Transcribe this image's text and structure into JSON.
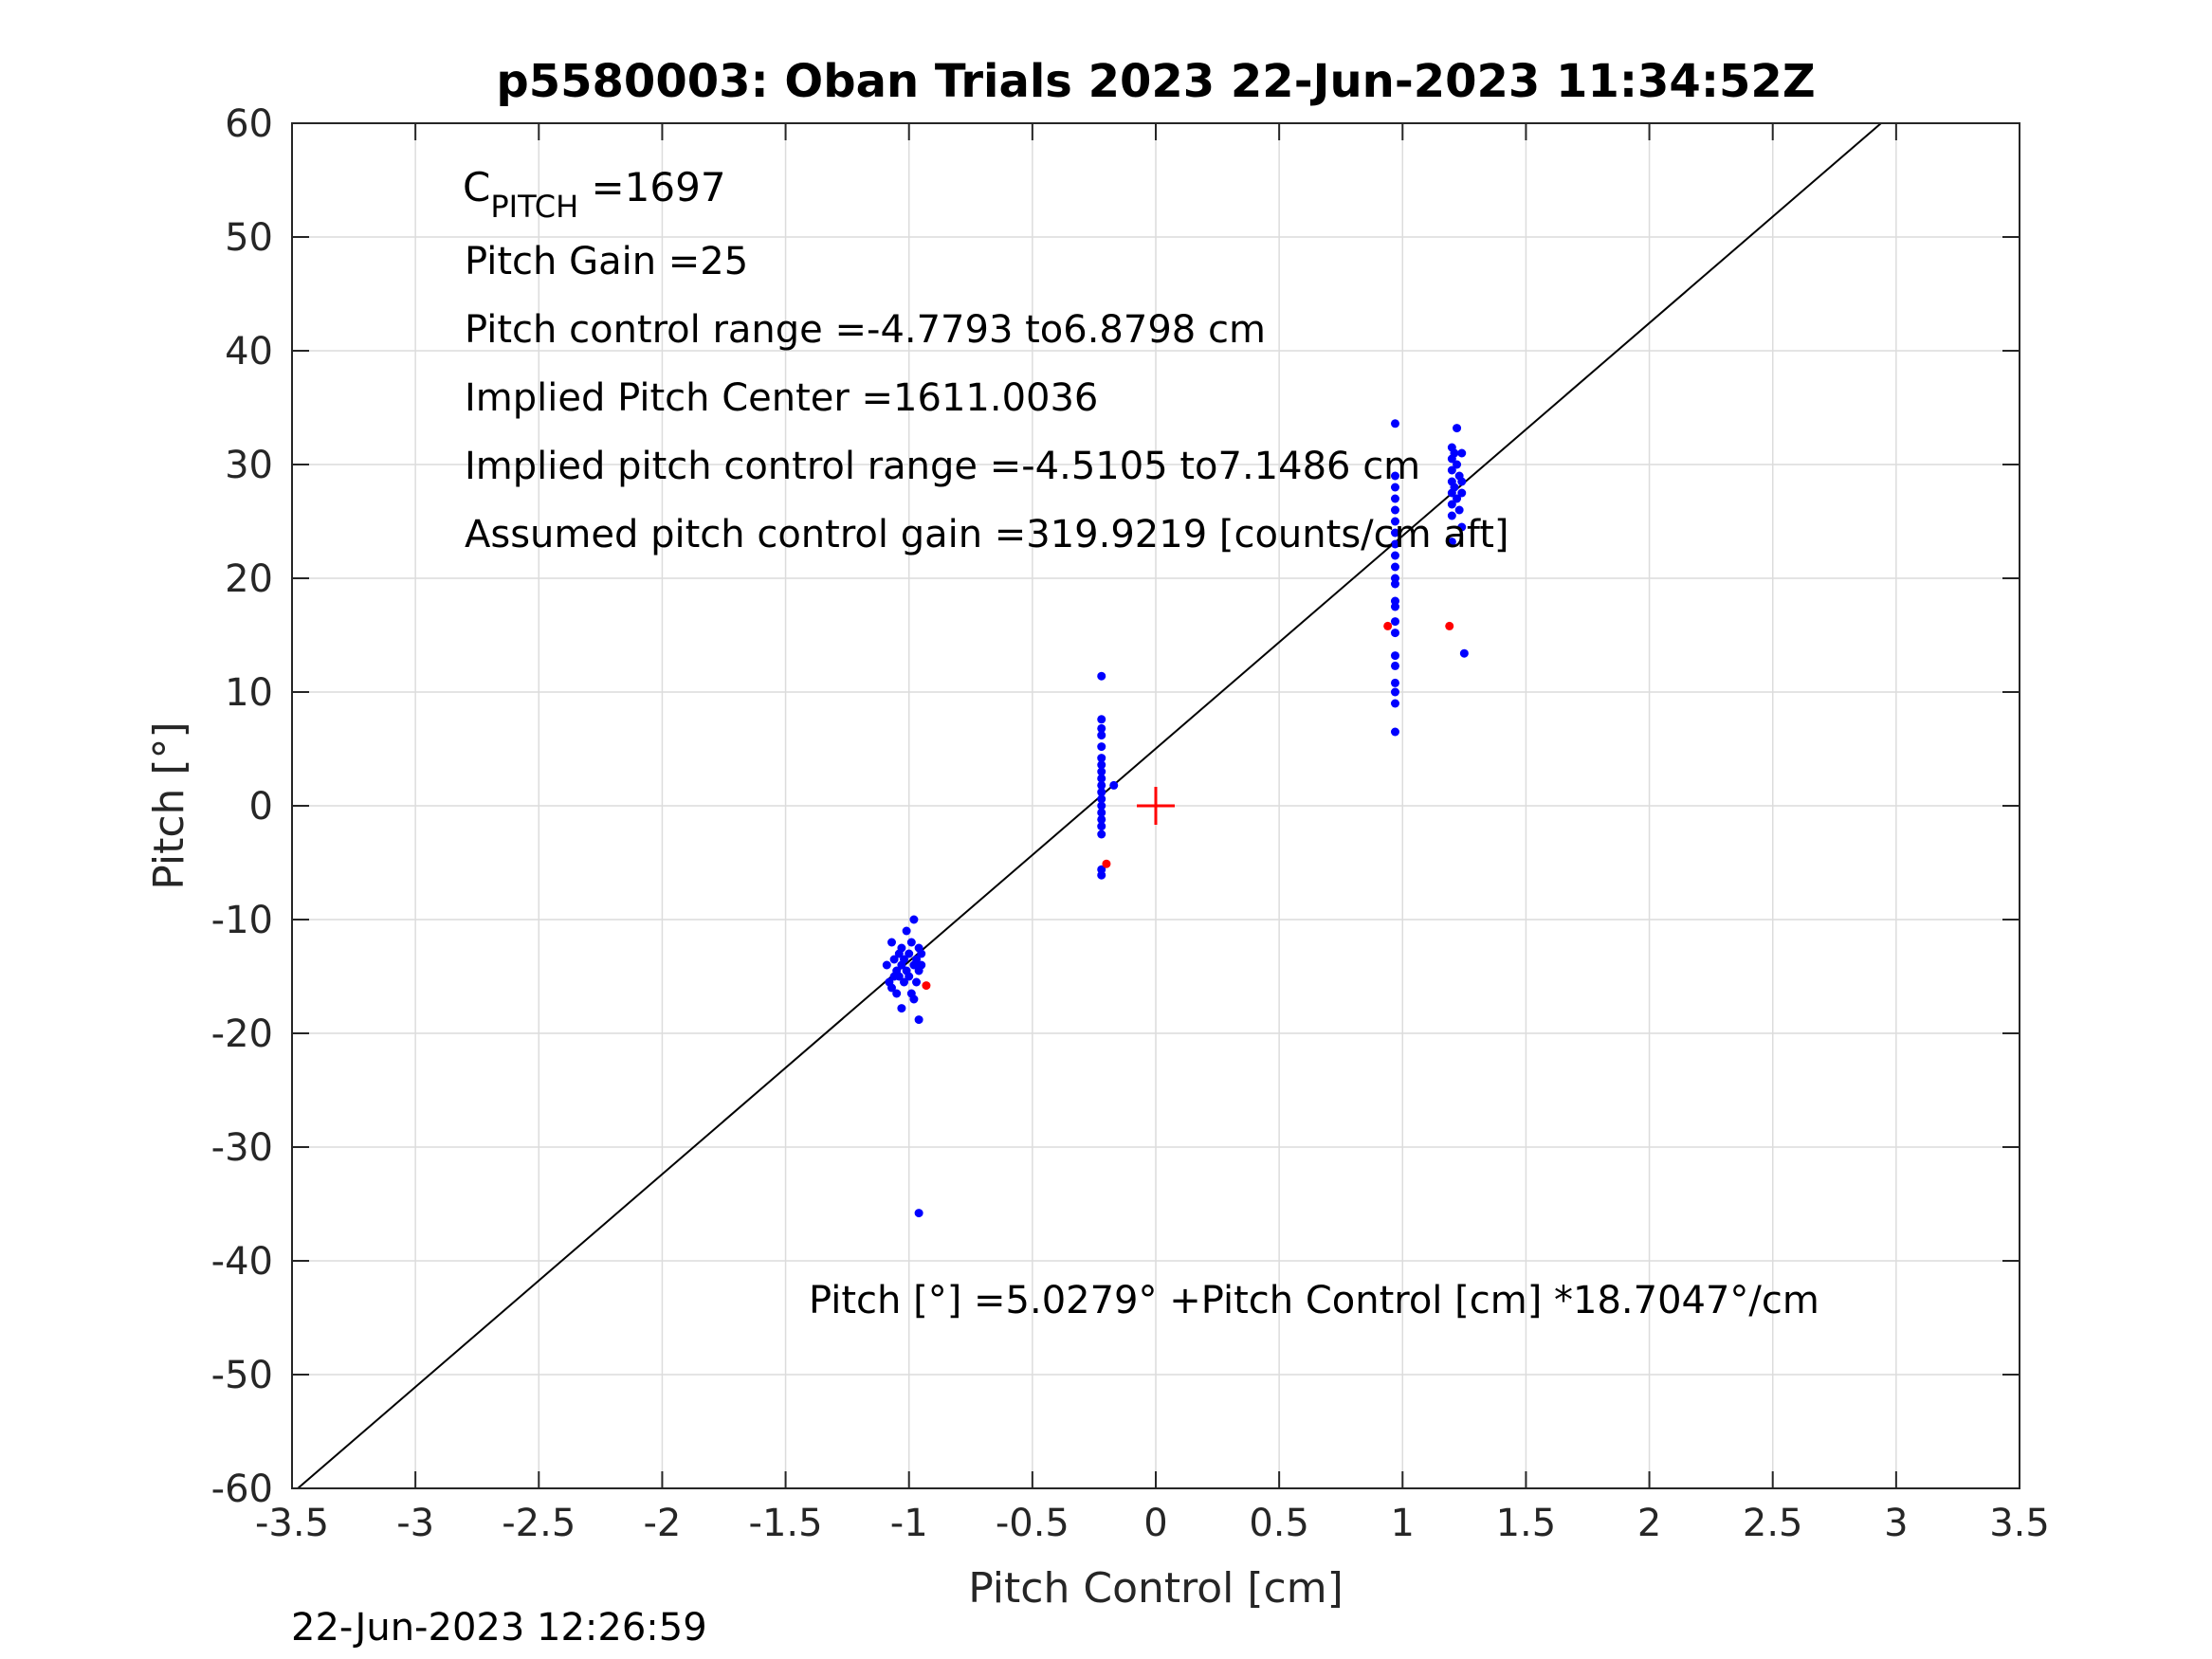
{
  "chart_data": {
    "type": "scatter",
    "title": "p5580003: Oban Trials 2023 22-Jun-2023 11:34:52Z",
    "xlabel": "Pitch Control [cm]",
    "ylabel": "Pitch [°]",
    "xlim": [
      -3.5,
      3.5
    ],
    "ylim": [
      -60,
      60
    ],
    "xticks": [
      -3.5,
      -3,
      -2.5,
      -2,
      -1.5,
      -1,
      -0.5,
      0,
      0.5,
      1,
      1.5,
      2,
      2.5,
      3,
      3.5
    ],
    "xtick_labels": [
      "-3.5",
      "-3",
      "-2.5",
      "-2",
      "-1.5",
      "-1",
      "-0.5",
      "0",
      "0.5",
      "1",
      "1.5",
      "2",
      "2.5",
      "3",
      "3.5"
    ],
    "yticks": [
      -60,
      -50,
      -40,
      -30,
      -20,
      -10,
      0,
      10,
      20,
      30,
      40,
      50,
      60
    ],
    "ytick_labels": [
      "-60",
      "-50",
      "-40",
      "-30",
      "-20",
      "-10",
      "0",
      "10",
      "20",
      "30",
      "40",
      "50",
      "60"
    ],
    "grid": true,
    "colors": {
      "points": "#0000ff",
      "flagged": "#ff0000",
      "fit_line": "#000000",
      "center_marker": "#ff0000",
      "grid": "#dcdcdc",
      "axes": "#262626"
    },
    "series": [
      {
        "color": "#0000ff",
        "points": [
          [
            -1.09,
            -14
          ],
          [
            -1.08,
            -15.5
          ],
          [
            -1.07,
            -12
          ],
          [
            -1.07,
            -16
          ],
          [
            -1.06,
            -13.5
          ],
          [
            -1.06,
            -15
          ],
          [
            -1.05,
            -14.5
          ],
          [
            -1.05,
            -16.5
          ],
          [
            -1.04,
            -13
          ],
          [
            -1.04,
            -15
          ],
          [
            -1.03,
            -12.5
          ],
          [
            -1.03,
            -14
          ],
          [
            -1.03,
            -17.8
          ],
          [
            -1.02,
            -15.5
          ],
          [
            -1.02,
            -13.5
          ],
          [
            -1.01,
            -11
          ],
          [
            -1.01,
            -14.5
          ],
          [
            -1.0,
            -13
          ],
          [
            -1.0,
            -15
          ],
          [
            -0.99,
            -12
          ],
          [
            -0.99,
            -16.5
          ],
          [
            -0.98,
            -10
          ],
          [
            -0.98,
            -14
          ],
          [
            -0.98,
            -17
          ],
          [
            -0.97,
            -13.5
          ],
          [
            -0.97,
            -15.5
          ],
          [
            -0.96,
            -12.5
          ],
          [
            -0.96,
            -14.5
          ],
          [
            -0.96,
            -18.8
          ],
          [
            -0.95,
            -13
          ],
          [
            -0.95,
            -14
          ],
          [
            -0.96,
            -35.8
          ],
          [
            -0.22,
            11.4
          ],
          [
            -0.22,
            7.6
          ],
          [
            -0.22,
            6.8
          ],
          [
            -0.22,
            6.2
          ],
          [
            -0.22,
            5.2
          ],
          [
            -0.22,
            4.2
          ],
          [
            -0.22,
            3.6
          ],
          [
            -0.22,
            3.0
          ],
          [
            -0.22,
            2.4
          ],
          [
            -0.22,
            1.8
          ],
          [
            -0.22,
            1.2
          ],
          [
            -0.22,
            0.6
          ],
          [
            -0.22,
            0.0
          ],
          [
            -0.22,
            -0.6
          ],
          [
            -0.22,
            -1.2
          ],
          [
            -0.22,
            -1.8
          ],
          [
            -0.22,
            -2.5
          ],
          [
            -0.22,
            -5.6
          ],
          [
            -0.22,
            -6.1
          ],
          [
            -0.17,
            1.8
          ],
          [
            0.97,
            33.6
          ],
          [
            0.97,
            29
          ],
          [
            0.97,
            28
          ],
          [
            0.97,
            27
          ],
          [
            0.97,
            26
          ],
          [
            0.97,
            25
          ],
          [
            0.97,
            24
          ],
          [
            0.97,
            23
          ],
          [
            0.97,
            22
          ],
          [
            0.97,
            21
          ],
          [
            0.97,
            20
          ],
          [
            0.97,
            19.5
          ],
          [
            0.97,
            18
          ],
          [
            0.97,
            17.5
          ],
          [
            0.97,
            16.2
          ],
          [
            0.97,
            15.2
          ],
          [
            0.97,
            13.2
          ],
          [
            0.97,
            12.3
          ],
          [
            0.97,
            10.8
          ],
          [
            0.97,
            10
          ],
          [
            0.97,
            9
          ],
          [
            0.97,
            6.5
          ],
          [
            1.2,
            31.5
          ],
          [
            1.2,
            30.5
          ],
          [
            1.2,
            29.5
          ],
          [
            1.2,
            28.5
          ],
          [
            1.2,
            27.5
          ],
          [
            1.2,
            26.5
          ],
          [
            1.2,
            25.5
          ],
          [
            1.21,
            31
          ],
          [
            1.21,
            28
          ],
          [
            1.22,
            33.2
          ],
          [
            1.22,
            30
          ],
          [
            1.22,
            27
          ],
          [
            1.23,
            29
          ],
          [
            1.23,
            26
          ],
          [
            1.24,
            31
          ],
          [
            1.24,
            28.5
          ],
          [
            1.24,
            27.5
          ],
          [
            1.24,
            24.5
          ],
          [
            1.2,
            23.2
          ],
          [
            1.25,
            13.4
          ]
        ]
      },
      {
        "color": "#ff0000",
        "points": [
          [
            -0.93,
            -15.8
          ],
          [
            -0.2,
            -5.1
          ],
          [
            0.94,
            15.8
          ],
          [
            1.19,
            15.8
          ]
        ]
      }
    ],
    "fit_line": {
      "intercept": 5.0279,
      "slope": 18.7047
    },
    "center_marker": {
      "x": 0,
      "y": 0
    }
  },
  "annotations": {
    "c_pitch_main": "C",
    "c_pitch_sub": "PITCH",
    "c_pitch_value": " =1697",
    "pitch_gain": "Pitch Gain =25",
    "control_range": "Pitch control range =-4.7793 to6.8798 cm",
    "implied_center": "Implied Pitch Center =1611.0036",
    "implied_range": "Implied pitch control range =-4.5105 to7.1486 cm",
    "assumed_gain": "Assumed pitch control gain =319.9219 [counts/cm aft]",
    "fit_equation": "Pitch [°] =5.0279° +Pitch Control [cm] *18.7047°/cm"
  },
  "footer": {
    "timestamp": "22-Jun-2023 12:26:59"
  }
}
